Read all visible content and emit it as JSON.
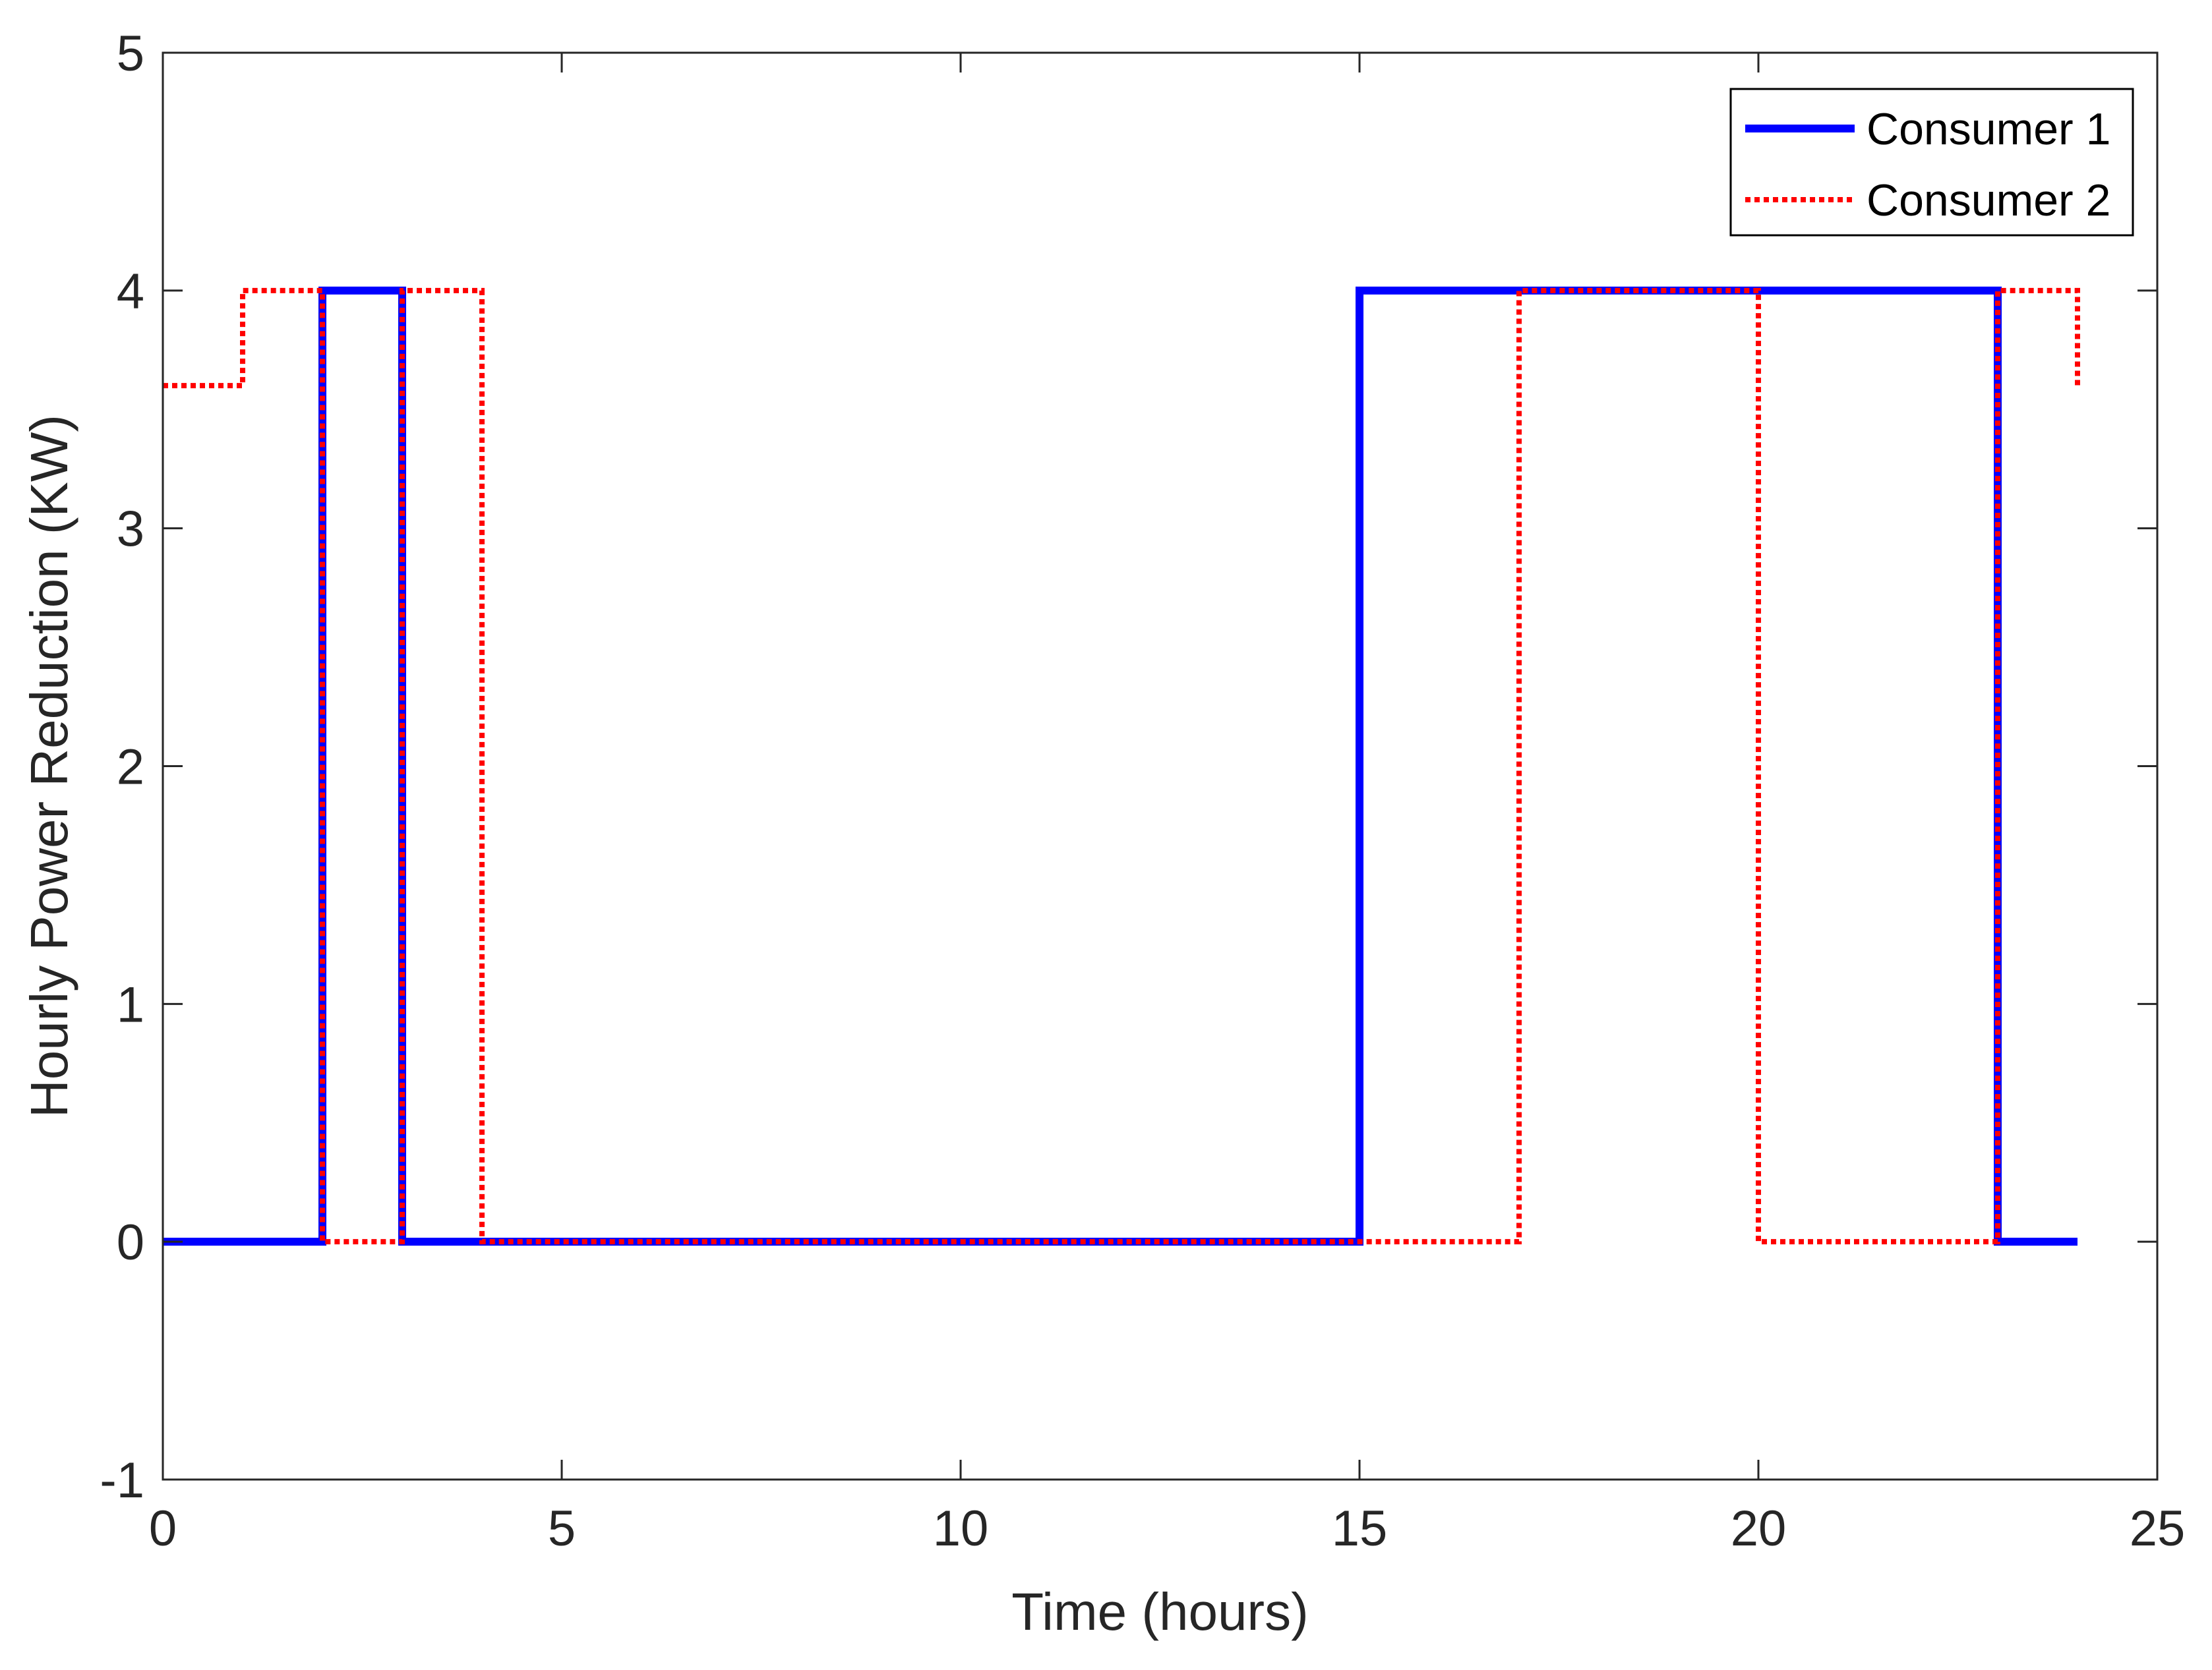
{
  "chart_data": {
    "type": "line",
    "step": true,
    "xlabel": "Time (hours)",
    "ylabel": "Hourly Power Reduction (KW)",
    "xlim": [
      0,
      25
    ],
    "ylim": [
      -1,
      5
    ],
    "xticks": [
      0,
      5,
      10,
      15,
      20,
      25
    ],
    "yticks": [
      -1,
      0,
      1,
      2,
      3,
      4,
      5
    ],
    "grid": false,
    "legend_position": "top-right",
    "series": [
      {
        "name": "Consumer 1",
        "color": "#0000ff",
        "line_style": "solid",
        "x": [
          0,
          2,
          3,
          4,
          15,
          17,
          20,
          23,
          24
        ],
        "y": [
          0,
          4,
          0,
          0,
          4,
          4,
          4,
          0,
          0
        ]
      },
      {
        "name": "Consumer 2",
        "color": "#ff0000",
        "line_style": "dotted",
        "x": [
          0,
          1,
          2,
          3,
          4,
          15,
          17,
          20,
          23,
          24
        ],
        "y": [
          3.6,
          4,
          0,
          4,
          0,
          0,
          4,
          0,
          4,
          3.6
        ]
      }
    ]
  }
}
